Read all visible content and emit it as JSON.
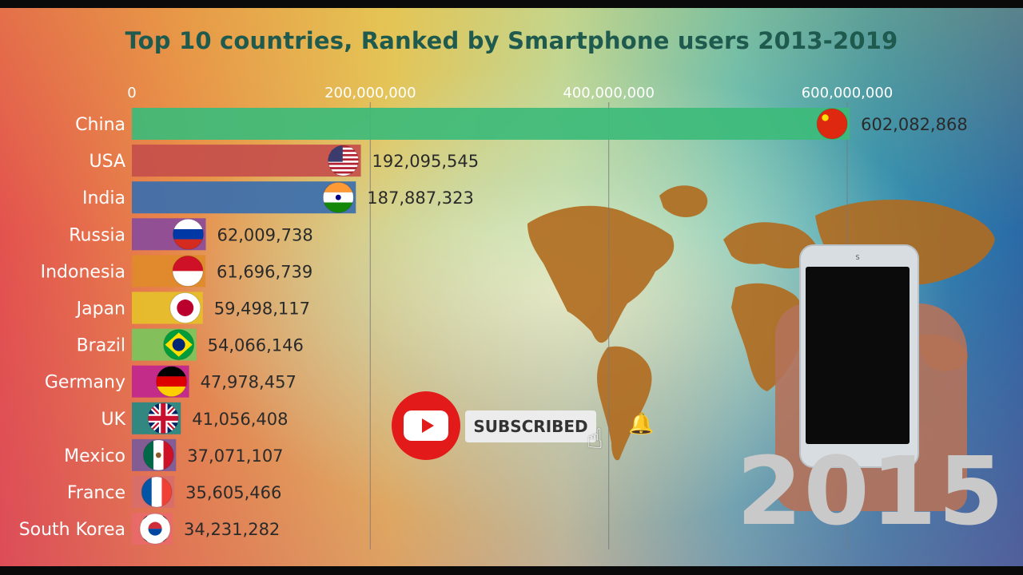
{
  "title": "Top 10 countries, Ranked by Smartphone users 2013-2019",
  "year": "2015",
  "subscribe": {
    "label": "SUBSCRIBED"
  },
  "icons": {
    "youtube": "youtube-logo-icon",
    "bell": "bell-icon",
    "cursor": "hand-pointer-icon"
  },
  "chart_data": {
    "type": "bar",
    "orientation": "horizontal",
    "title": "Top 10 countries, Ranked by Smartphone users 2013-2019",
    "xlim": [
      0,
      600000000
    ],
    "ticks": [
      {
        "value": 0,
        "label": "0"
      },
      {
        "value": 200000000,
        "label": "200,000,000"
      },
      {
        "value": 400000000,
        "label": "400,000,000"
      },
      {
        "value": 600000000,
        "label": "600,000,000"
      }
    ],
    "grid": true,
    "bars": [
      {
        "name": "China",
        "value": 602082868,
        "label": "602,082,868",
        "color": "#3dbb79",
        "flag": "china-flag-icon"
      },
      {
        "name": "USA",
        "value": 192095545,
        "label": "192,095,545",
        "color": "#c64f4b",
        "flag": "usa-flag-icon"
      },
      {
        "name": "India",
        "value": 187887323,
        "label": "187,887,323",
        "color": "#3b6fae",
        "flag": "india-flag-icon"
      },
      {
        "name": "Russia",
        "value": 62009738,
        "label": "62,009,738",
        "color": "#8a4b9a",
        "flag": "russia-flag-icon"
      },
      {
        "name": "Indonesia",
        "value": 61696739,
        "label": "61,696,739",
        "color": "#e08a2a",
        "flag": "indonesia-flag-icon"
      },
      {
        "name": "Japan",
        "value": 59498117,
        "label": "59,498,117",
        "color": "#e6c02a",
        "flag": "japan-flag-icon"
      },
      {
        "name": "Brazil",
        "value": 54066146,
        "label": "54,066,146",
        "color": "#7bc65c",
        "flag": "brazil-flag-icon"
      },
      {
        "name": "Germany",
        "value": 47978457,
        "label": "47,978,457",
        "color": "#c0268e",
        "flag": "germany-flag-icon"
      },
      {
        "name": "UK",
        "value": 41056408,
        "label": "41,056,408",
        "color": "#238a86",
        "flag": "uk-flag-icon"
      },
      {
        "name": "Mexico",
        "value": 37071107,
        "label": "37,071,107",
        "color": "#7c5a9a",
        "flag": "mexico-flag-icon"
      },
      {
        "name": "France",
        "value": 35605466,
        "label": "35,605,466",
        "color": "#d86e6a",
        "flag": "france-flag-icon"
      },
      {
        "name": "South Korea",
        "value": 34231282,
        "label": "34,231,282",
        "color": "#e86a6a",
        "flag": "south-korea-flag-icon"
      }
    ]
  }
}
